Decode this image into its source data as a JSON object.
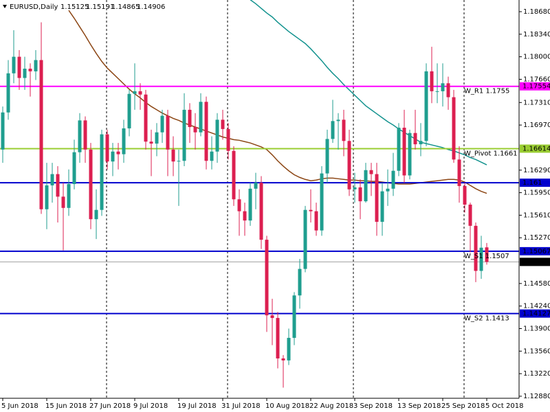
{
  "chart_data": {
    "type": "candlestick",
    "title": "EURUSD,Daily",
    "categories": [
      "5 Jun 2018",
      null,
      null,
      null,
      null,
      null,
      null,
      null,
      "15 Jun 2018",
      null,
      null,
      null,
      null,
      null,
      null,
      null,
      "27 Jun 2018",
      null,
      null,
      null,
      null,
      null,
      null,
      null,
      "9 Jul 2018",
      null,
      null,
      null,
      null,
      null,
      null,
      null,
      "19 Jul 2018",
      null,
      null,
      null,
      null,
      null,
      null,
      null,
      "31 Jul 2018",
      null,
      null,
      null,
      null,
      null,
      null,
      null,
      "10 Aug 2018",
      null,
      null,
      null,
      null,
      null,
      null,
      null,
      "22 Aug 2018",
      null,
      null,
      null,
      null,
      null,
      null,
      null,
      "3 Sep 2018",
      null,
      null,
      null,
      null,
      null,
      null,
      null,
      "13 Sep 2018",
      null,
      null,
      null,
      null,
      null,
      null,
      null,
      "25 Sep 2018",
      null,
      null,
      null,
      null,
      null,
      null,
      null,
      "5 Oct 2018"
    ],
    "open": [
      1.166,
      1.1716,
      1.1775,
      1.18,
      1.1768,
      1.1782,
      1.1778,
      1.1795,
      1.157,
      1.1606,
      1.1623,
      1.1589,
      1.1572,
      1.1608,
      1.1656,
      1.1704,
      1.166,
      1.1555,
      1.1569,
      1.1683,
      1.1642,
      1.1657,
      1.1653,
      1.1692,
      1.1744,
      1.1748,
      1.1743,
      1.1672,
      1.1669,
      1.1686,
      1.1711,
      1.166,
      1.1642,
      1.1643,
      1.172,
      1.1694,
      1.1686,
      1.1732,
      1.1643,
      1.1657,
      1.1705,
      1.1691,
      1.1658,
      1.1585,
      1.1567,
      1.1553,
      1.1601,
      1.161,
      1.1524,
      1.141,
      1.1406,
      1.1345,
      1.1342,
      1.1376,
      1.144,
      1.148,
      1.1569,
      1.1567,
      1.1538,
      1.1624,
      1.1676,
      1.1703,
      1.1705,
      1.1673,
      1.16,
      1.1603,
      1.1582,
      1.1629,
      1.1623,
      1.1551,
      1.1597,
      1.1601,
      1.1628,
      1.1693,
      1.1621,
      1.1685,
      1.1668,
      1.1673,
      1.1778,
      1.1748,
      1.1748,
      1.176,
      1.1739,
      1.1645,
      1.1605,
      1.1577,
      1.1545,
      1.1477,
      1.15125
    ],
    "high": [
      1.1725,
      1.1795,
      1.184,
      1.181,
      1.18,
      1.179,
      1.181,
      1.1852,
      1.164,
      1.164,
      1.1635,
      1.161,
      1.163,
      1.1675,
      1.1715,
      1.171,
      1.167,
      1.16,
      1.169,
      1.169,
      1.167,
      1.167,
      1.1705,
      1.175,
      1.179,
      1.176,
      1.175,
      1.169,
      1.17,
      1.172,
      1.172,
      1.168,
      1.166,
      1.1745,
      1.173,
      1.1715,
      1.1745,
      1.174,
      1.168,
      1.1715,
      1.172,
      1.17,
      1.1665,
      1.16,
      1.158,
      1.161,
      1.1625,
      1.162,
      1.153,
      1.1435,
      1.1415,
      1.135,
      1.139,
      1.1445,
      1.1495,
      1.1575,
      1.16,
      1.158,
      1.1635,
      1.169,
      1.1735,
      1.1715,
      1.172,
      1.169,
      1.1625,
      1.1615,
      1.164,
      1.164,
      1.164,
      1.161,
      1.163,
      1.1655,
      1.17,
      1.172,
      1.169,
      1.172,
      1.17,
      1.179,
      1.1815,
      1.179,
      1.179,
      1.177,
      1.175,
      1.1665,
      1.161,
      1.158,
      1.155,
      1.153,
      1.15191
    ],
    "low": [
      1.164,
      1.1705,
      1.176,
      1.175,
      1.175,
      1.174,
      1.1765,
      1.1563,
      1.154,
      1.158,
      1.155,
      1.1508,
      1.156,
      1.16,
      1.164,
      1.164,
      1.154,
      1.1525,
      1.156,
      1.163,
      1.162,
      1.163,
      1.164,
      1.168,
      1.172,
      1.172,
      1.166,
      1.162,
      1.165,
      1.167,
      1.162,
      1.162,
      1.1575,
      1.1635,
      1.167,
      1.166,
      1.168,
      1.163,
      1.163,
      1.164,
      1.1675,
      1.1645,
      1.1575,
      1.153,
      1.153,
      1.1545,
      1.157,
      1.151,
      1.1385,
      1.1365,
      1.133,
      1.1301,
      1.1335,
      1.1365,
      1.142,
      1.1475,
      1.155,
      1.153,
      1.153,
      1.161,
      1.167,
      1.166,
      1.165,
      1.159,
      1.158,
      1.1555,
      1.158,
      1.159,
      1.153,
      1.153,
      1.1575,
      1.159,
      1.162,
      1.161,
      1.1615,
      1.166,
      1.165,
      1.1665,
      1.173,
      1.173,
      1.1725,
      1.172,
      1.164,
      1.158,
      1.1565,
      1.1505,
      1.146,
      1.1465,
      1.14865
    ],
    "close": [
      1.1716,
      1.1775,
      1.18,
      1.1768,
      1.1782,
      1.1778,
      1.1795,
      1.157,
      1.1606,
      1.1623,
      1.1589,
      1.1572,
      1.1608,
      1.1656,
      1.1704,
      1.166,
      1.1555,
      1.1569,
      1.1683,
      1.1642,
      1.1657,
      1.1653,
      1.1692,
      1.1744,
      1.1748,
      1.1743,
      1.1672,
      1.1669,
      1.1686,
      1.1711,
      1.166,
      1.1642,
      1.1643,
      1.172,
      1.1694,
      1.1686,
      1.1732,
      1.1643,
      1.1657,
      1.1705,
      1.1691,
      1.1658,
      1.1585,
      1.1567,
      1.1553,
      1.1601,
      1.161,
      1.1524,
      1.141,
      1.1406,
      1.1345,
      1.1342,
      1.1376,
      1.144,
      1.148,
      1.1569,
      1.1567,
      1.1538,
      1.1624,
      1.1676,
      1.1703,
      1.1705,
      1.1673,
      1.16,
      1.1603,
      1.1582,
      1.1629,
      1.1623,
      1.1551,
      1.1597,
      1.1601,
      1.1628,
      1.1693,
      1.1621,
      1.1685,
      1.1668,
      1.1673,
      1.1778,
      1.1748,
      1.1748,
      1.176,
      1.1739,
      1.1645,
      1.1605,
      1.1577,
      1.1545,
      1.1477,
      1.1512,
      1.14906
    ],
    "up_color": "#1f9e8f",
    "down_color": "#dc1f50",
    "ma": [
      {
        "color": "#8b4513",
        "values": [
          null,
          null,
          null,
          null,
          null,
          null,
          null,
          null,
          null,
          null,
          null,
          null,
          1.187,
          1.1858,
          1.1845,
          1.1832,
          1.1818,
          1.1805,
          1.1793,
          1.1783,
          1.1775,
          1.1767,
          1.1759,
          1.1751,
          1.1744,
          1.1738,
          1.1731,
          1.1725,
          1.172,
          1.1715,
          1.1711,
          1.1707,
          1.1704,
          1.17,
          1.1697,
          1.1694,
          1.1691,
          1.1688,
          1.1685,
          1.1682,
          1.1679,
          1.1677,
          1.1675,
          1.1674,
          1.1672,
          1.167,
          1.1667,
          1.1664,
          1.166,
          1.1652,
          1.1643,
          1.1635,
          1.1628,
          1.1622,
          1.1618,
          1.1615,
          1.1613,
          1.1614,
          1.1616,
          1.1617,
          1.1617,
          1.1616,
          1.1615,
          1.1614,
          1.1614,
          1.1613,
          1.1613,
          1.1612,
          1.1612,
          1.1611,
          1.161,
          1.1609,
          1.1608,
          1.1608,
          1.1608,
          1.1609,
          1.161,
          1.1611,
          1.1612,
          1.1613,
          1.1614,
          1.1615,
          1.1615,
          1.1614,
          1.1611,
          1.1606,
          1.1601,
          1.1597,
          1.1594
        ]
      },
      {
        "color": "#12928e",
        "values": [
          null,
          null,
          null,
          null,
          null,
          null,
          null,
          null,
          null,
          null,
          null,
          null,
          null,
          null,
          null,
          null,
          null,
          null,
          null,
          null,
          null,
          null,
          null,
          null,
          null,
          null,
          null,
          null,
          null,
          null,
          null,
          null,
          null,
          null,
          null,
          null,
          null,
          null,
          null,
          null,
          null,
          null,
          null,
          null,
          null,
          1.1886,
          1.188,
          1.1873,
          1.1866,
          1.186,
          1.1852,
          1.1845,
          1.1838,
          1.1832,
          1.1826,
          1.182,
          1.1812,
          1.1803,
          1.1794,
          1.1784,
          1.1775,
          1.1767,
          1.1758,
          1.175,
          1.1742,
          1.1734,
          1.1726,
          1.172,
          1.1714,
          1.1708,
          1.1702,
          1.1697,
          1.1691,
          1.1686,
          1.1681,
          1.1676,
          1.1671,
          1.1669,
          1.1667,
          1.1665,
          1.1663,
          1.166,
          1.1658,
          1.1655,
          1.1652,
          1.1648,
          1.1645,
          1.1641,
          1.1637
        ]
      }
    ],
    "levels": [
      {
        "value": 1.17554,
        "label": "W_R1 1.1755",
        "color": "#ff00ff"
      },
      {
        "value": 1.16614,
        "label": "W_Pivot 1.1661",
        "color": "#9acd32"
      },
      {
        "value": 1.161,
        "color": "#0000cd"
      },
      {
        "value": 1.15067,
        "label": "W_S1 1.1507",
        "color": "#0000cd"
      },
      {
        "value": 1.14906,
        "color": "#000000"
      },
      {
        "value": 1.14127,
        "label": "W_S2 1.1413",
        "color": "#0000cd"
      }
    ],
    "ylim": [
      1.12849,
      1.18856
    ],
    "yticks": [
      {
        "value": 1.1868,
        "label": "1.18680"
      },
      {
        "value": 1.1834,
        "label": "1.18340"
      },
      {
        "value": 1.18,
        "label": "1.18000"
      },
      {
        "value": 1.1766,
        "label": "1.17660"
      },
      {
        "value": 1.1731,
        "label": "1.17310"
      },
      {
        "value": 1.1697,
        "label": "1.16970"
      },
      {
        "value": 1.1629,
        "label": "1.16290"
      },
      {
        "value": 1.1595,
        "label": "1.15950"
      },
      {
        "value": 1.1561,
        "label": "1.15610"
      },
      {
        "value": 1.1527,
        "label": "1.15270"
      },
      {
        "value": 1.1458,
        "label": "1.14580"
      },
      {
        "value": 1.1424,
        "label": "1.14240"
      },
      {
        "value": 1.139,
        "label": "1.13900"
      },
      {
        "value": 1.1356,
        "label": "1.13560"
      },
      {
        "value": 1.1322,
        "label": "1.13220"
      },
      {
        "value": 1.1288,
        "label": "1.12880"
      }
    ]
  }
}
